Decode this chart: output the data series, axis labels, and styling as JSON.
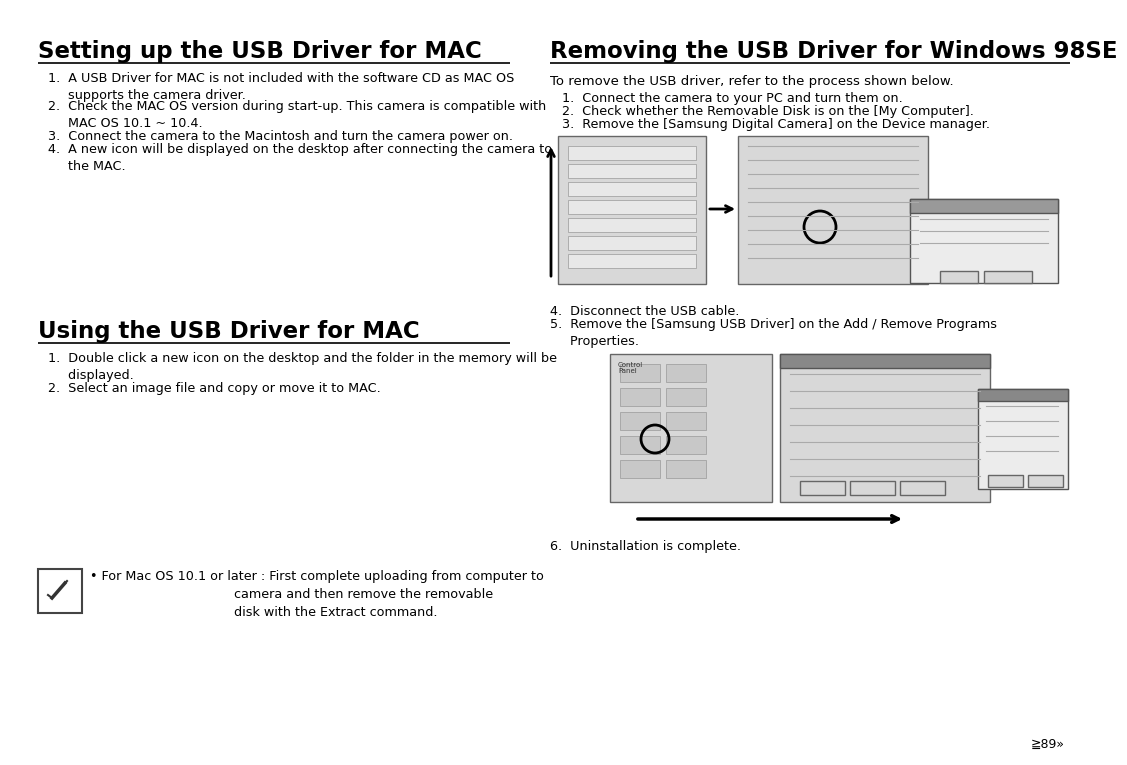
{
  "bg_color": "#ffffff",
  "left_title": "Setting up the USB Driver for MAC",
  "right_title": "Removing the USB Driver for Windows 98SE",
  "left_section2_title": "Using the USB Driver for MAC",
  "page_num": "≧89»"
}
